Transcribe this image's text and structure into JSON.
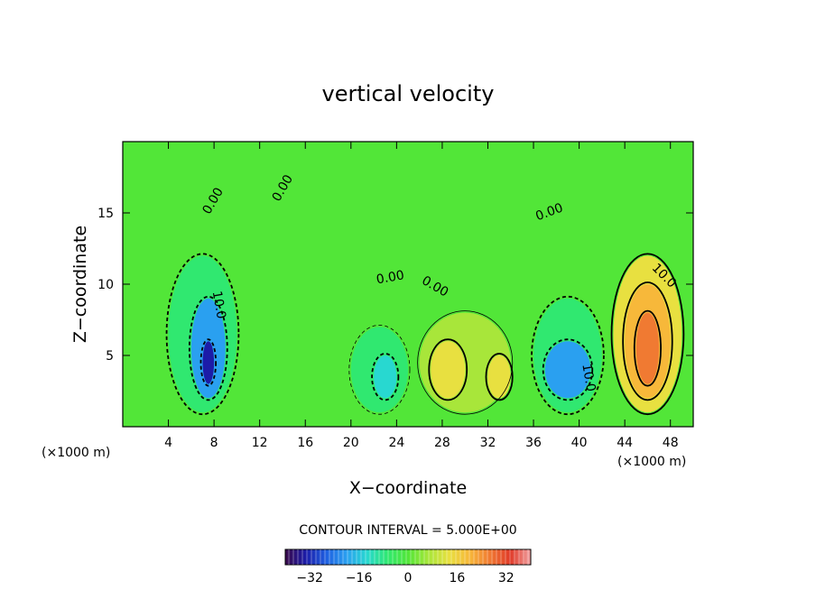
{
  "chart_data": {
    "type": "heatmap",
    "title": "vertical velocity",
    "xlabel": "X−coordinate",
    "ylabel": "Z−coordinate",
    "x_unit_left": "(×1000 m)",
    "x_unit_right": "(×1000 m)",
    "xlim": [
      0,
      50
    ],
    "ylim": [
      0,
      20
    ],
    "x_ticks": [
      4,
      8,
      12,
      16,
      20,
      24,
      28,
      32,
      36,
      40,
      44,
      48
    ],
    "y_ticks": [
      5,
      10,
      15
    ],
    "contour_interval_text": "CONTOUR INTERVAL = 5.000E+00",
    "colorbar": {
      "range": [
        -40,
        40
      ],
      "ticks": [
        -32,
        -16,
        0,
        16,
        32
      ],
      "tick_labels": [
        "−32",
        "−16",
        "0",
        "16",
        "32"
      ]
    },
    "colormap": [
      "#3a0a4a",
      "#1c1ca8",
      "#1f5fe0",
      "#2aa0f0",
      "#28d8d0",
      "#30e870",
      "#52e638",
      "#a8e63a",
      "#e8e040",
      "#f7b83a",
      "#f07a32",
      "#e03a28",
      "#f0a0a0"
    ],
    "cells": [
      {
        "x0": 0,
        "x1": 50,
        "y0": 0,
        "y1": 20,
        "v": 0
      },
      {
        "x0": 4,
        "x1": 10,
        "y0": 1,
        "y1": 12,
        "v": -10
      },
      {
        "x0": 6,
        "x1": 9,
        "y0": 2,
        "y1": 9,
        "v": -20
      },
      {
        "x0": 7,
        "x1": 8,
        "y0": 3,
        "y1": 6,
        "v": -35
      },
      {
        "x0": 20,
        "x1": 25,
        "y0": 1,
        "y1": 7,
        "v": -8
      },
      {
        "x0": 22,
        "x1": 24,
        "y0": 2,
        "y1": 5,
        "v": -13
      },
      {
        "x0": 36,
        "x1": 42,
        "y0": 1,
        "y1": 9,
        "v": -10
      },
      {
        "x0": 37,
        "x1": 41,
        "y0": 2,
        "y1": 6,
        "v": -17
      },
      {
        "x0": 26,
        "x1": 34,
        "y0": 1,
        "y1": 8,
        "v": 8
      },
      {
        "x0": 27,
        "x1": 30,
        "y0": 2,
        "y1": 6,
        "v": 12
      },
      {
        "x0": 32,
        "x1": 34,
        "y0": 2,
        "y1": 5,
        "v": 16
      },
      {
        "x0": 43,
        "x1": 49,
        "y0": 1,
        "y1": 12,
        "v": 10
      },
      {
        "x0": 44,
        "x1": 48,
        "y0": 2,
        "y1": 10,
        "v": 20
      },
      {
        "x0": 45,
        "x1": 47,
        "y0": 3,
        "y1": 8,
        "v": 28
      }
    ],
    "contour_labels": [
      {
        "text": "0.00",
        "x": 8.2,
        "y": 15.7,
        "angle": -60
      },
      {
        "text": "0.00",
        "x": 14.3,
        "y": 16.6,
        "angle": -60
      },
      {
        "text": "0.00",
        "x": 23.5,
        "y": 10.2,
        "angle": -10
      },
      {
        "text": "0.00",
        "x": 27.2,
        "y": 9.6,
        "angle": 30
      },
      {
        "text": "0.00",
        "x": 37.5,
        "y": 14.8,
        "angle": -20
      },
      {
        "text": "10.0",
        "x": 8.1,
        "y": 8.5,
        "angle": 80
      },
      {
        "text": "10.0",
        "x": 40.5,
        "y": 3.4,
        "angle": 80
      },
      {
        "text": "10.0",
        "x": 47.2,
        "y": 10.4,
        "angle": 45
      }
    ]
  }
}
